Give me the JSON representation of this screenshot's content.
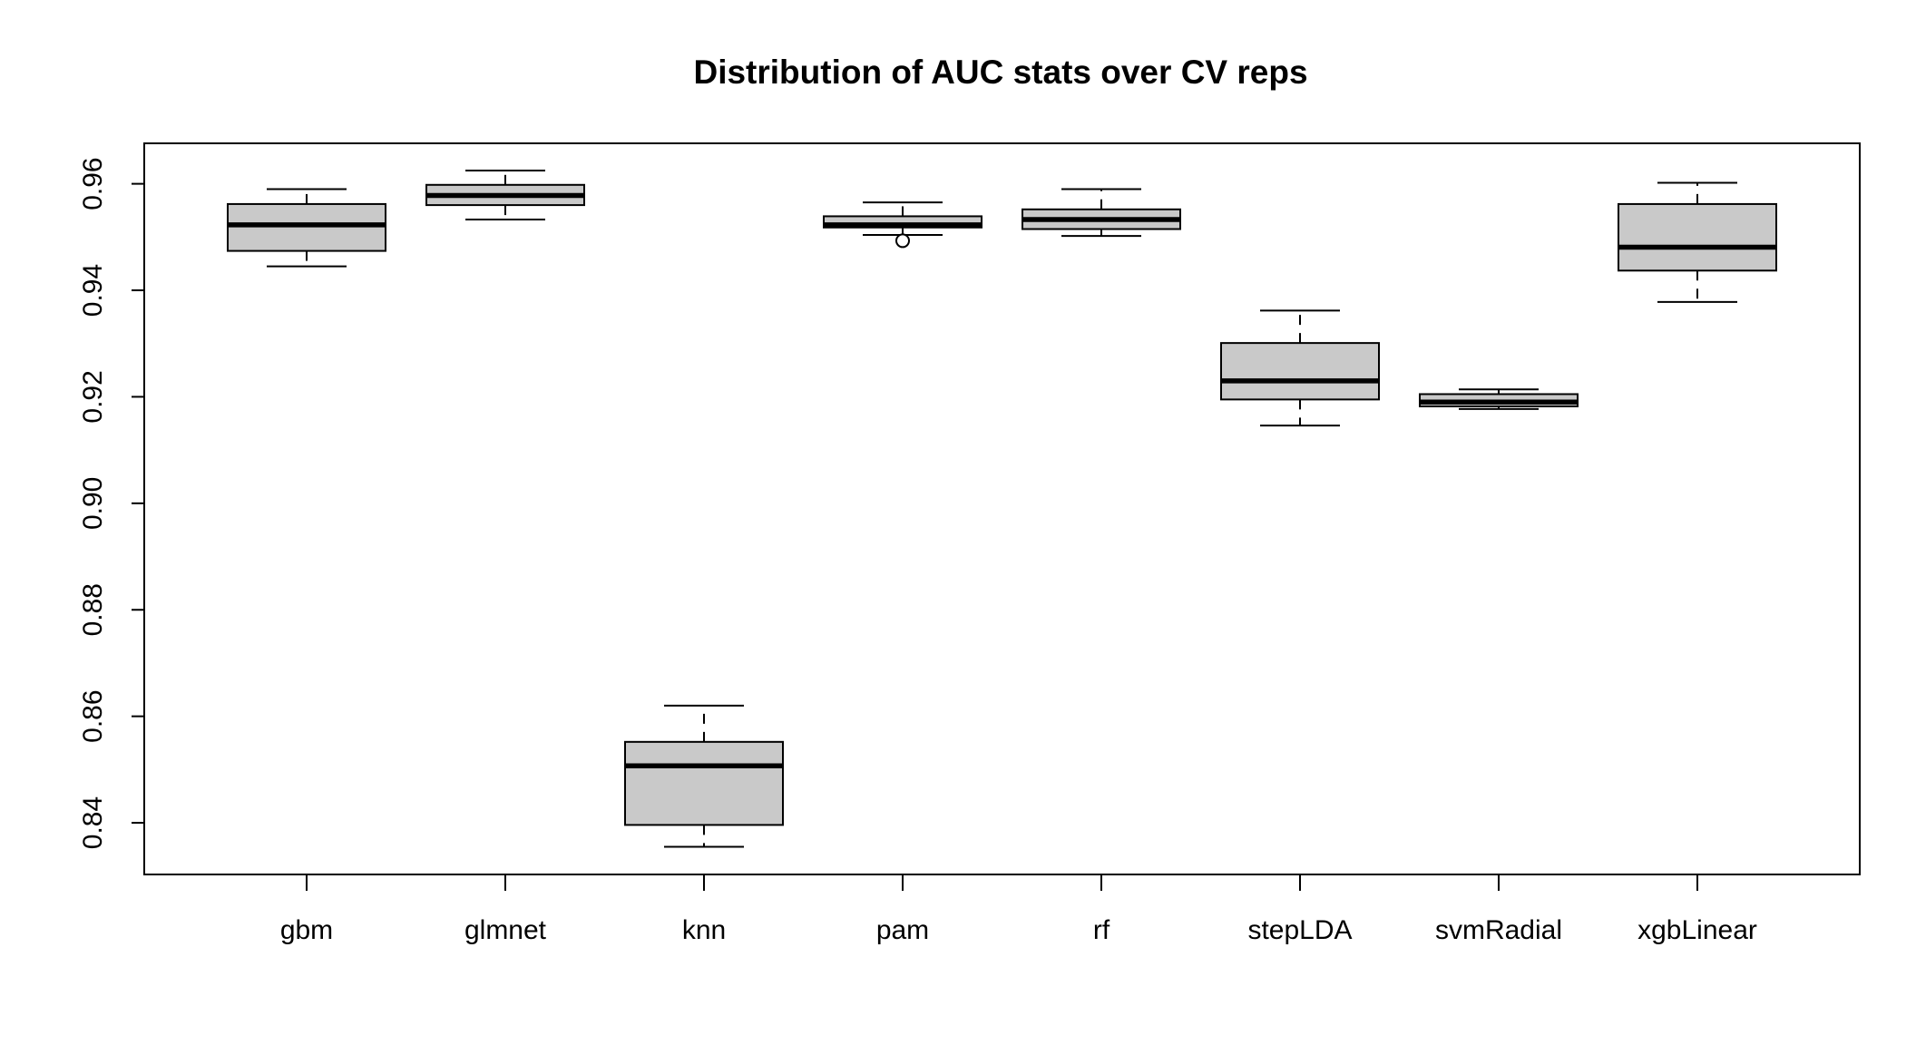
{
  "chart_data": {
    "type": "boxplot",
    "title": "Distribution of AUC stats over CV reps",
    "xlabel": "",
    "ylabel": "",
    "ylim": [
      0.8303,
      0.9676
    ],
    "yticks": [
      0.84,
      0.86,
      0.88,
      0.9,
      0.92,
      0.94,
      0.96
    ],
    "ytick_labels": [
      "0.84",
      "0.86",
      "0.88",
      "0.90",
      "0.92",
      "0.94",
      "0.96"
    ],
    "grid": false,
    "legend": "none",
    "box_color": "#c9c9c9",
    "categories": [
      "gbm",
      "glmnet",
      "knn",
      "pam",
      "rf",
      "stepLDA",
      "svmRadial",
      "xgbLinear"
    ],
    "boxes": [
      {
        "name": "gbm",
        "whisker_low": 0.9445,
        "q1": 0.9474,
        "median": 0.9523,
        "q3": 0.9562,
        "whisker_high": 0.959,
        "outliers": []
      },
      {
        "name": "glmnet",
        "whisker_low": 0.9533,
        "q1": 0.956,
        "median": 0.9578,
        "q3": 0.9598,
        "whisker_high": 0.9625,
        "outliers": []
      },
      {
        "name": "knn",
        "whisker_low": 0.8355,
        "q1": 0.8396,
        "median": 0.8507,
        "q3": 0.8552,
        "whisker_high": 0.862,
        "outliers": []
      },
      {
        "name": "pam",
        "whisker_low": 0.9504,
        "q1": 0.9518,
        "median": 0.9523,
        "q3": 0.9539,
        "whisker_high": 0.9565,
        "outliers": [
          0.9493
        ]
      },
      {
        "name": "rf",
        "whisker_low": 0.9502,
        "q1": 0.9515,
        "median": 0.9533,
        "q3": 0.9552,
        "whisker_high": 0.959,
        "outliers": []
      },
      {
        "name": "stepLDA",
        "whisker_low": 0.9146,
        "q1": 0.9195,
        "median": 0.923,
        "q3": 0.9301,
        "whisker_high": 0.9362,
        "outliers": []
      },
      {
        "name": "svmRadial",
        "whisker_low": 0.9177,
        "q1": 0.9182,
        "median": 0.919,
        "q3": 0.9205,
        "whisker_high": 0.9214,
        "outliers": []
      },
      {
        "name": "xgbLinear",
        "whisker_low": 0.9378,
        "q1": 0.9437,
        "median": 0.9481,
        "q3": 0.9562,
        "whisker_high": 0.9602,
        "outliers": []
      }
    ]
  }
}
